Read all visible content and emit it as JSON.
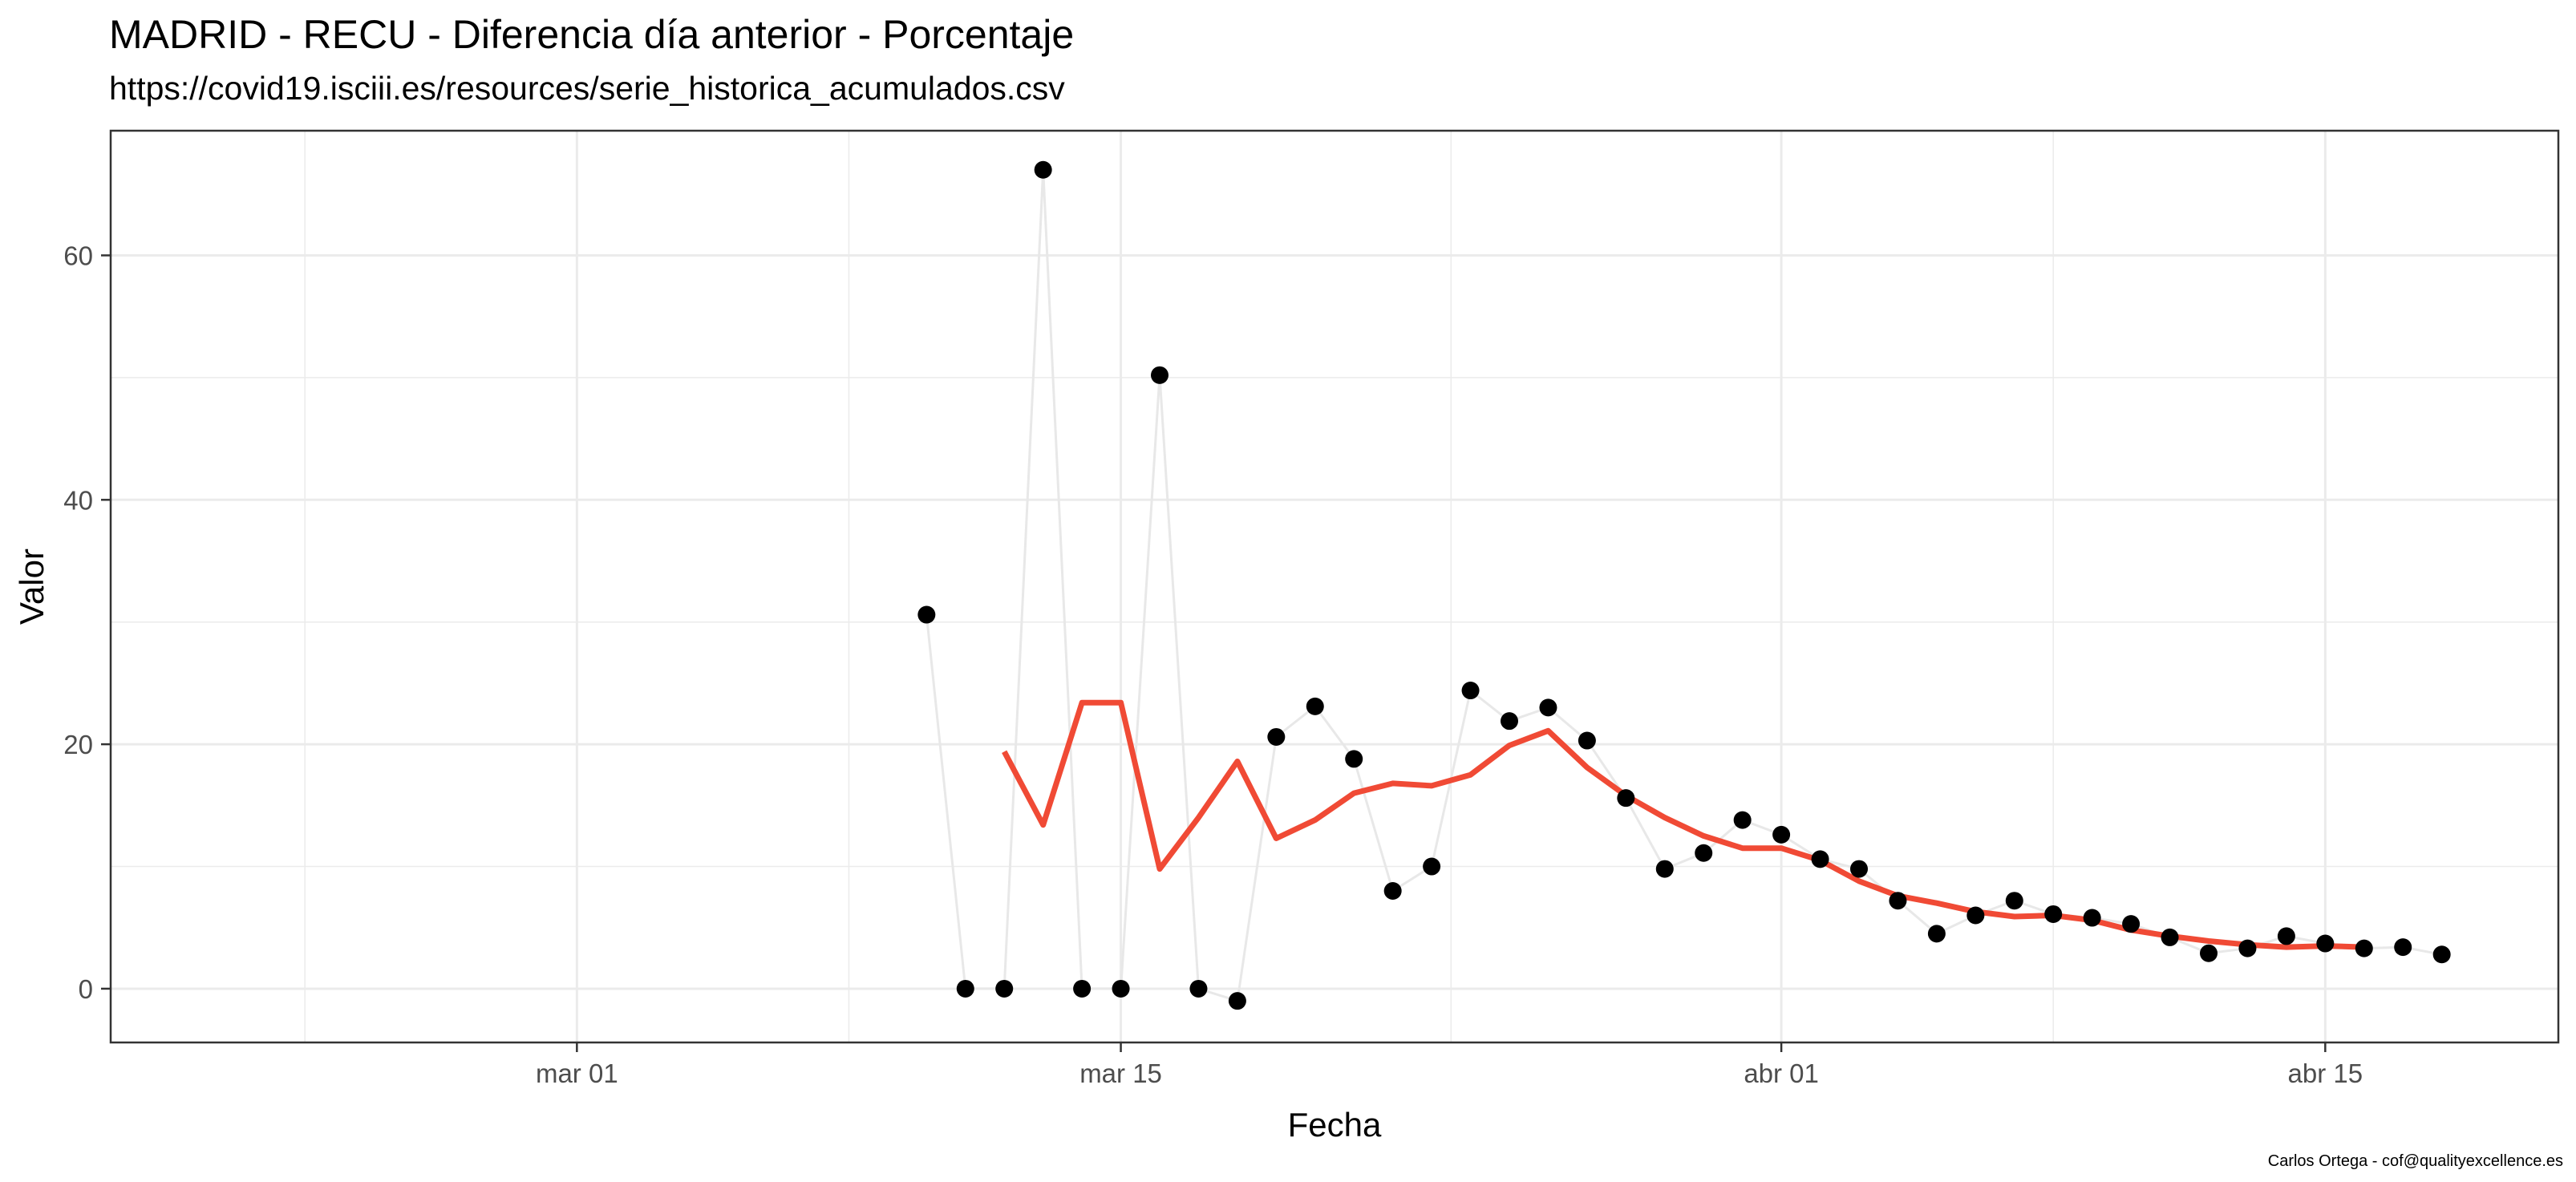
{
  "chart_data": {
    "type": "line",
    "title": "MADRID - RECU - Diferencia día anterior - Porcentaje",
    "subtitle": "https://covid19.isciii.es/resources/serie_historica_acumulados.csv",
    "xlabel": "Fecha",
    "ylabel": "Valor",
    "caption": "Carlos Ortega - cof@qualityexcellence.es",
    "x_ticks": [
      {
        "date": "2020-03-01",
        "label": "mar 01"
      },
      {
        "date": "2020-03-15",
        "label": "mar 15"
      },
      {
        "date": "2020-04-01",
        "label": "abr 01"
      },
      {
        "date": "2020-04-15",
        "label": "abr 15"
      }
    ],
    "y_ticks": [
      0,
      20,
      40,
      60
    ],
    "xlim": [
      "2020-02-18",
      "2020-04-21"
    ],
    "ylim": [
      -4.4,
      70.2
    ],
    "grid": true,
    "colors": {
      "points": "#000000",
      "connector": "#e8e8e8",
      "smooth": "#f04a35",
      "grid": "#ebebeb",
      "panel_border": "#333333"
    },
    "series": [
      {
        "style": "points",
        "x": [
          "2020-03-10",
          "2020-03-11",
          "2020-03-12",
          "2020-03-13",
          "2020-03-14",
          "2020-03-15",
          "2020-03-16",
          "2020-03-17",
          "2020-03-18",
          "2020-03-19",
          "2020-03-20",
          "2020-03-21",
          "2020-03-22",
          "2020-03-23",
          "2020-03-24",
          "2020-03-25",
          "2020-03-26",
          "2020-03-27",
          "2020-03-28",
          "2020-03-29",
          "2020-03-30",
          "2020-03-31",
          "2020-04-01",
          "2020-04-02",
          "2020-04-03",
          "2020-04-04",
          "2020-04-05",
          "2020-04-06",
          "2020-04-07",
          "2020-04-08",
          "2020-04-09",
          "2020-04-10",
          "2020-04-11",
          "2020-04-12",
          "2020-04-13",
          "2020-04-14",
          "2020-04-15",
          "2020-04-16",
          "2020-04-17",
          "2020-04-18"
        ],
        "y": [
          30.6,
          0,
          0,
          67,
          0,
          0,
          50.2,
          0,
          -1,
          20.6,
          23.1,
          18.8,
          8,
          10,
          24.4,
          21.9,
          23,
          20.3,
          15.6,
          9.8,
          11.1,
          13.8,
          12.6,
          10.6,
          9.8,
          7.2,
          4.5,
          6,
          7.2,
          6.1,
          5.8,
          5.3,
          4.2,
          2.9,
          3.3,
          4.3,
          3.7,
          3.3,
          3.4,
          2.8
        ]
      },
      {
        "style": "smooth",
        "x": [
          "2020-03-12",
          "2020-03-13",
          "2020-03-14",
          "2020-03-15",
          "2020-03-16",
          "2020-03-17",
          "2020-03-18",
          "2020-03-19",
          "2020-03-20",
          "2020-03-21",
          "2020-03-22",
          "2020-03-23",
          "2020-03-24",
          "2020-03-25",
          "2020-03-26",
          "2020-03-27",
          "2020-03-28",
          "2020-03-29",
          "2020-03-30",
          "2020-03-31",
          "2020-04-01",
          "2020-04-02",
          "2020-04-03",
          "2020-04-04",
          "2020-04-05",
          "2020-04-06",
          "2020-04-07",
          "2020-04-08",
          "2020-04-09",
          "2020-04-10",
          "2020-04-11",
          "2020-04-12",
          "2020-04-13",
          "2020-04-14",
          "2020-04-15",
          "2020-04-16"
        ],
        "y": [
          19.4,
          13.4,
          23.4,
          23.4,
          9.8,
          14,
          18.6,
          12.3,
          13.8,
          16,
          16.8,
          16.6,
          17.5,
          19.9,
          21.1,
          18.1,
          15.8,
          14,
          12.5,
          11.5,
          11.5,
          10.5,
          8.8,
          7.6,
          7,
          6.3,
          5.9,
          6,
          5.6,
          4.8,
          4.3,
          3.9,
          3.6,
          3.4,
          3.5,
          3.4
        ]
      }
    ]
  }
}
